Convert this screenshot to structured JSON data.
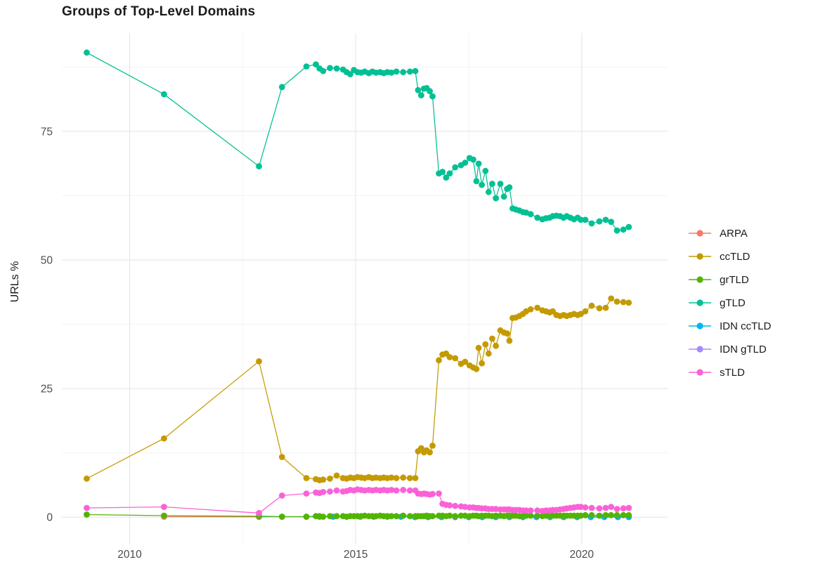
{
  "chart_data": {
    "type": "line",
    "title": "Groups of Top-Level Domains",
    "xlabel": "",
    "ylabel": "URLs %",
    "grid": true,
    "legend_position": "right",
    "xlim": [
      2008.5,
      2021.9
    ],
    "ylim": [
      -5.3,
      94.1
    ],
    "x_ticks": [
      2010,
      2015,
      2020
    ],
    "x_tick_labels": [
      "2010",
      "2015",
      "2020"
    ],
    "x_minor": [
      2012.5,
      2017.5
    ],
    "y_ticks": [
      0,
      25,
      50,
      75
    ],
    "y_tick_labels": [
      "0",
      "25",
      "50",
      "75"
    ],
    "y_minor": [
      12.5,
      37.5,
      62.5,
      87.5
    ],
    "theme": {
      "grid_major_color": "#e8e8e8",
      "grid_minor_color": "#f2f2f2",
      "tick_label_color": "#4d4d4d",
      "text_color": "#1a1a1a",
      "background": "#ffffff"
    },
    "draw_order": [
      "IDN gTLD",
      "IDN ccTLD",
      "ARPA",
      "grTLD",
      "sTLD",
      "ccTLD",
      "gTLD"
    ],
    "x": [
      2009.05,
      2010.76,
      2012.86,
      2013.37,
      2013.91,
      2014.12,
      2014.2,
      2014.28,
      2014.43,
      2014.58,
      2014.72,
      2014.8,
      2014.88,
      2014.96,
      2015.04,
      2015.12,
      2015.2,
      2015.29,
      2015.37,
      2015.45,
      2015.54,
      2015.62,
      2015.7,
      2015.79,
      2015.9,
      2016.05,
      2016.2,
      2016.32,
      2016.38,
      2016.45,
      2016.51,
      2016.57,
      2016.64,
      2016.7,
      2016.84,
      2016.92,
      2017.0,
      2017.08,
      2017.2,
      2017.33,
      2017.42,
      2017.52,
      2017.6,
      2017.67,
      2017.72,
      2017.79,
      2017.87,
      2017.94,
      2018.02,
      2018.1,
      2018.2,
      2018.28,
      2018.35,
      2018.4,
      2018.47,
      2018.54,
      2018.62,
      2018.7,
      2018.77,
      2018.87,
      2019.02,
      2019.13,
      2019.21,
      2019.29,
      2019.36,
      2019.44,
      2019.52,
      2019.6,
      2019.67,
      2019.75,
      2019.83,
      2019.91,
      2019.98,
      2020.08,
      2020.22,
      2020.39,
      2020.53,
      2020.65,
      2020.78,
      2020.92,
      2021.04
    ],
    "series": [
      {
        "name": "ARPA",
        "color": "#F8766D",
        "x": [
          2010.76,
          2012.86
        ],
        "y": [
          0.1,
          0.05
        ]
      },
      {
        "name": "ccTLD",
        "color": "#C49A00",
        "y": [
          7.5,
          15.3,
          30.3,
          11.7,
          7.6,
          7.4,
          7.2,
          7.3,
          7.5,
          8.1,
          7.6,
          7.5,
          7.7,
          7.6,
          7.8,
          7.7,
          7.6,
          7.8,
          7.6,
          7.7,
          7.6,
          7.7,
          7.6,
          7.7,
          7.6,
          7.7,
          7.6,
          7.6,
          12.8,
          13.4,
          12.6,
          13,
          12.6,
          13.9,
          30.5,
          31.6,
          31.8,
          31.1,
          30.9,
          29.8,
          30.2,
          29.5,
          29.1,
          28.8,
          32.9,
          29.9,
          33.6,
          31.8,
          34.7,
          33.3,
          36.3,
          35.9,
          35.7,
          34.3,
          38.7,
          38.8,
          39.1,
          39.5,
          40,
          40.4,
          40.7,
          40.2,
          40,
          39.8,
          40,
          39.3,
          39.1,
          39.3,
          39.1,
          39.3,
          39.5,
          39.3,
          39.5,
          40,
          41.1,
          40.6,
          40.7,
          42.5,
          41.9,
          41.8,
          41.7
        ]
      },
      {
        "name": "grTLD",
        "color": "#53B400",
        "y": [
          0.5,
          0.3,
          0.2,
          0.1,
          0.1,
          0.2,
          0.2,
          0.1,
          0.2,
          0.2,
          0.2,
          0.1,
          0.2,
          0.2,
          0.2,
          0.2,
          0.3,
          0.2,
          0.2,
          0.2,
          0.3,
          0.2,
          0.2,
          0.2,
          0.2,
          0.3,
          0.2,
          0.2,
          0.2,
          0.2,
          0.2,
          0.3,
          0.2,
          0.2,
          0.3,
          0.3,
          0.2,
          0.3,
          0.2,
          0.3,
          0.3,
          0.2,
          0.3,
          0.3,
          0.2,
          0.3,
          0.3,
          0.3,
          0.2,
          0.3,
          0.3,
          0.2,
          0.3,
          0.3,
          0.3,
          0.3,
          0.2,
          0.3,
          0.3,
          0.3,
          0.3,
          0.2,
          0.3,
          0.3,
          0.3,
          0.3,
          0.3,
          0.3,
          0.3,
          0.3,
          0.3,
          0.3,
          0.3,
          0.4,
          0.4,
          0.3,
          0.4,
          0.4,
          0.4,
          0.4,
          0.4
        ]
      },
      {
        "name": "gTLD",
        "color": "#00C094",
        "y": [
          90.3,
          82.2,
          68.2,
          83.6,
          87.6,
          88,
          87.2,
          86.7,
          87.3,
          87.2,
          87,
          86.5,
          86.1,
          86.9,
          86.5,
          86.4,
          86.6,
          86.3,
          86.6,
          86.4,
          86.5,
          86.3,
          86.5,
          86.4,
          86.6,
          86.5,
          86.6,
          86.7,
          83,
          82,
          83.3,
          83.4,
          82.8,
          81.8,
          66.8,
          67.1,
          66,
          66.8,
          68,
          68.4,
          68.9,
          69.8,
          69.5,
          65.3,
          68.7,
          64.6,
          67.3,
          63.2,
          64.8,
          62,
          64.8,
          62.3,
          63.8,
          64.1,
          60,
          59.8,
          59.6,
          59.3,
          59.2,
          58.9,
          58.2,
          57.9,
          58.1,
          58.2,
          58.5,
          58.6,
          58.5,
          58.2,
          58.5,
          58.2,
          57.9,
          58.2,
          57.8,
          57.8,
          57.1,
          57.5,
          57.8,
          57.4,
          55.7,
          55.9,
          56.4
        ]
      },
      {
        "name": "IDN ccTLD",
        "color": "#00B6EB",
        "x": [
          2012.86,
          2013.37,
          2013.91,
          2014.2,
          2014.5,
          2014.8,
          2015.1,
          2015.4,
          2015.7,
          2016.0,
          2016.3,
          2016.6,
          2016.9,
          2017.2,
          2017.5,
          2017.8,
          2018.1,
          2018.4,
          2018.7,
          2019.0,
          2019.3,
          2019.6,
          2019.9,
          2020.2,
          2020.5,
          2020.8,
          2021.04
        ],
        "y": [
          0.1,
          0.1,
          0.1,
          0.1,
          0.1,
          0.1,
          0.1,
          0.1,
          0.1,
          0.1,
          0.1,
          0.1,
          0.1,
          0.1,
          0.1,
          0.1,
          0.1,
          0.1,
          0.1,
          0.1,
          0.1,
          0.1,
          0.1,
          0.1,
          0.1,
          0.1,
          0.1
        ]
      },
      {
        "name": "IDN gTLD",
        "color": "#A58AFF",
        "x": [
          2016.32,
          2016.6,
          2016.9,
          2017.2,
          2017.5,
          2017.8,
          2018.1,
          2018.4,
          2018.7,
          2019.0,
          2019.3,
          2019.6,
          2019.9,
          2020.2,
          2020.5,
          2020.8,
          2021.04
        ],
        "y": [
          0,
          0,
          0,
          0,
          0,
          0,
          0,
          0,
          0,
          0,
          0,
          0,
          0,
          0,
          0,
          0,
          0
        ]
      },
      {
        "name": "sTLD",
        "color": "#FB61D7",
        "y": [
          1.8,
          2,
          0.8,
          4.2,
          4.6,
          4.8,
          4.7,
          4.9,
          5,
          5.2,
          5,
          5.1,
          5.3,
          5.2,
          5.4,
          5.3,
          5.2,
          5.3,
          5.2,
          5.3,
          5.2,
          5.3,
          5.2,
          5.3,
          5.2,
          5.3,
          5.2,
          5.2,
          4.6,
          4.5,
          4.6,
          4.5,
          4.4,
          4.5,
          4.6,
          2.6,
          2.4,
          2.3,
          2.2,
          2.1,
          2,
          1.9,
          1.9,
          1.8,
          1.8,
          1.7,
          1.7,
          1.6,
          1.6,
          1.6,
          1.5,
          1.5,
          1.5,
          1.5,
          1.4,
          1.4,
          1.4,
          1.3,
          1.3,
          1.3,
          1.3,
          1.2,
          1.3,
          1.3,
          1.4,
          1.4,
          1.5,
          1.6,
          1.7,
          1.8,
          1.9,
          2,
          2,
          1.9,
          1.8,
          1.7,
          1.8,
          2,
          1.6,
          1.7,
          1.8
        ]
      }
    ]
  }
}
